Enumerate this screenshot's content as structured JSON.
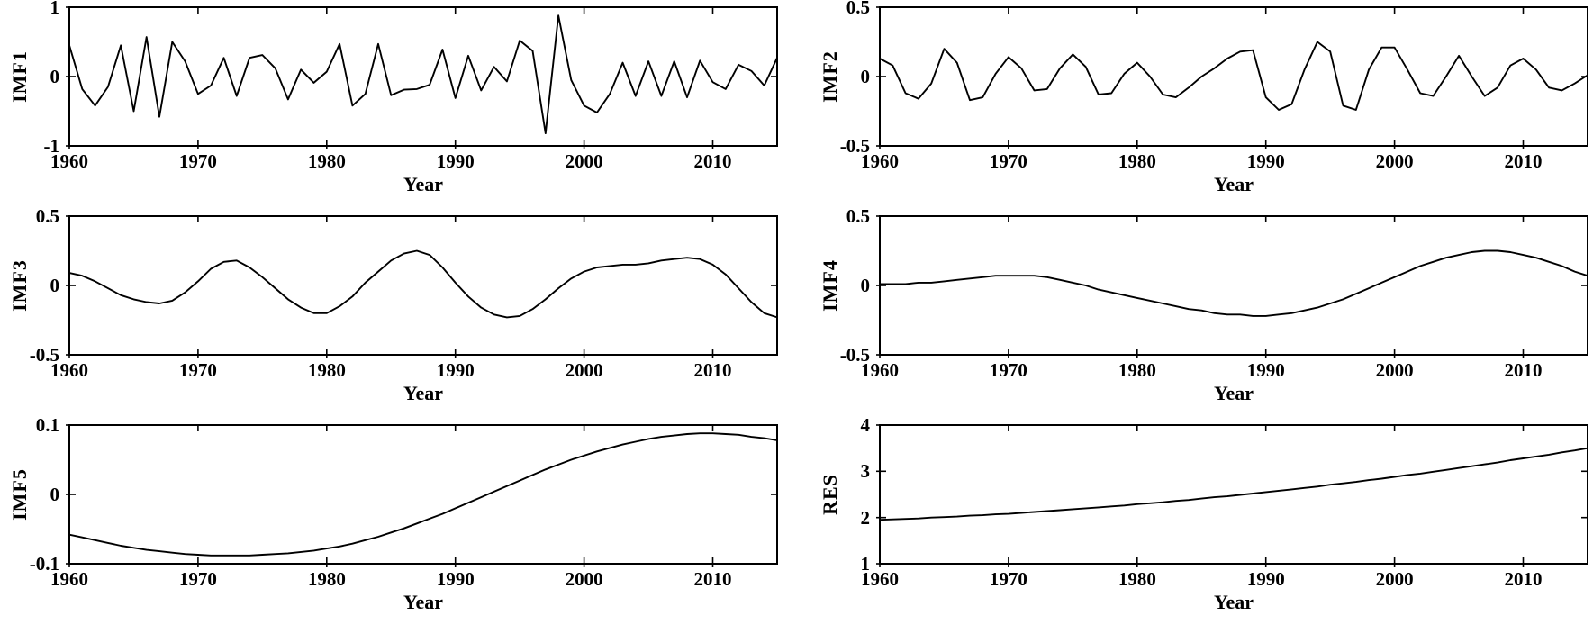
{
  "figure": {
    "background": "#ffffff",
    "line_color": "#000000",
    "columns": 2,
    "rows": 3
  },
  "chart_data": [
    {
      "type": "line",
      "ylabel": "IMF1",
      "xlabel": "Year",
      "xlim": [
        1960,
        2015
      ],
      "ylim": [
        -1,
        1
      ],
      "xticks": [
        1960,
        1970,
        1980,
        1990,
        2000,
        2010
      ],
      "xtick_labels": [
        "1960",
        "1970",
        "1980",
        "1990",
        "2000",
        "2010"
      ],
      "yticks": [
        -1,
        0,
        1
      ],
      "ytick_labels": [
        "-1",
        "0",
        "1"
      ],
      "grid": false,
      "legend": null,
      "x_start": 1960,
      "x_step": 1,
      "y": [
        0.45,
        -0.18,
        -0.42,
        -0.15,
        0.45,
        -0.5,
        0.57,
        -0.58,
        0.5,
        0.22,
        -0.25,
        -0.13,
        0.27,
        -0.28,
        0.27,
        0.31,
        0.12,
        -0.33,
        0.1,
        -0.09,
        0.07,
        0.47,
        -0.42,
        -0.25,
        0.47,
        -0.27,
        -0.19,
        -0.18,
        -0.12,
        0.39,
        -0.31,
        0.3,
        -0.2,
        0.14,
        -0.07,
        0.52,
        0.37,
        -0.82,
        0.88,
        -0.05,
        -0.42,
        -0.52,
        -0.25,
        0.2,
        -0.28,
        0.22,
        -0.28,
        0.22,
        -0.3,
        0.23,
        -0.08,
        -0.18,
        0.17,
        0.08,
        -0.13,
        0.27
      ]
    },
    {
      "type": "line",
      "ylabel": "IMF2",
      "xlabel": "Year",
      "xlim": [
        1960,
        2015
      ],
      "ylim": [
        -0.5,
        0.5
      ],
      "xticks": [
        1960,
        1970,
        1980,
        1990,
        2000,
        2010
      ],
      "xtick_labels": [
        "1960",
        "1970",
        "1980",
        "1990",
        "2000",
        "2010"
      ],
      "yticks": [
        -0.5,
        0,
        0.5
      ],
      "ytick_labels": [
        "-0.5",
        "0",
        "0.5"
      ],
      "grid": false,
      "legend": null,
      "x_start": 1960,
      "x_step": 1,
      "y": [
        0.13,
        0.08,
        -0.12,
        -0.16,
        -0.05,
        0.2,
        0.1,
        -0.17,
        -0.15,
        0.02,
        0.14,
        0.06,
        -0.1,
        -0.09,
        0.06,
        0.16,
        0.07,
        -0.13,
        -0.12,
        0.02,
        0.1,
        0.0,
        -0.13,
        -0.15,
        -0.08,
        0.0,
        0.06,
        0.13,
        0.18,
        0.19,
        -0.15,
        -0.24,
        -0.2,
        0.05,
        0.25,
        0.18,
        -0.21,
        -0.24,
        0.05,
        0.21,
        0.21,
        0.05,
        -0.12,
        -0.14,
        0.0,
        0.15,
        0.0,
        -0.14,
        -0.08,
        0.08,
        0.13,
        0.05,
        -0.08,
        -0.1,
        -0.05,
        0.01
      ]
    },
    {
      "type": "line",
      "ylabel": "IMF3",
      "xlabel": "Year",
      "xlim": [
        1960,
        2015
      ],
      "ylim": [
        -0.5,
        0.5
      ],
      "xticks": [
        1960,
        1970,
        1980,
        1990,
        2000,
        2010
      ],
      "xtick_labels": [
        "1960",
        "1970",
        "1980",
        "1990",
        "2000",
        "2010"
      ],
      "yticks": [
        -0.5,
        0,
        0.5
      ],
      "ytick_labels": [
        "-0.5",
        "0",
        "0.5"
      ],
      "grid": false,
      "legend": null,
      "x_start": 1960,
      "x_step": 1,
      "y": [
        0.09,
        0.07,
        0.03,
        -0.02,
        -0.07,
        -0.1,
        -0.12,
        -0.13,
        -0.11,
        -0.05,
        0.03,
        0.12,
        0.17,
        0.18,
        0.13,
        0.06,
        -0.02,
        -0.1,
        -0.16,
        -0.2,
        -0.2,
        -0.15,
        -0.08,
        0.02,
        0.1,
        0.18,
        0.23,
        0.25,
        0.22,
        0.13,
        0.02,
        -0.08,
        -0.16,
        -0.21,
        -0.23,
        -0.22,
        -0.17,
        -0.1,
        -0.02,
        0.05,
        0.1,
        0.13,
        0.14,
        0.15,
        0.15,
        0.16,
        0.18,
        0.19,
        0.2,
        0.19,
        0.15,
        0.08,
        -0.02,
        -0.12,
        -0.2,
        -0.23
      ]
    },
    {
      "type": "line",
      "ylabel": "IMF4",
      "xlabel": "Year",
      "xlim": [
        1960,
        2015
      ],
      "ylim": [
        -0.5,
        0.5
      ],
      "xticks": [
        1960,
        1970,
        1980,
        1990,
        2000,
        2010
      ],
      "xtick_labels": [
        "1960",
        "1970",
        "1980",
        "1990",
        "2000",
        "2010"
      ],
      "yticks": [
        -0.5,
        0,
        0.5
      ],
      "ytick_labels": [
        "-0.5",
        "0",
        "0.5"
      ],
      "grid": false,
      "legend": null,
      "x_start": 1960,
      "x_step": 1,
      "y": [
        0.01,
        0.01,
        0.01,
        0.02,
        0.02,
        0.03,
        0.04,
        0.05,
        0.06,
        0.07,
        0.07,
        0.07,
        0.07,
        0.06,
        0.04,
        0.02,
        0.0,
        -0.03,
        -0.05,
        -0.07,
        -0.09,
        -0.11,
        -0.13,
        -0.15,
        -0.17,
        -0.18,
        -0.2,
        -0.21,
        -0.21,
        -0.22,
        -0.22,
        -0.21,
        -0.2,
        -0.18,
        -0.16,
        -0.13,
        -0.1,
        -0.06,
        -0.02,
        0.02,
        0.06,
        0.1,
        0.14,
        0.17,
        0.2,
        0.22,
        0.24,
        0.25,
        0.25,
        0.24,
        0.22,
        0.2,
        0.17,
        0.14,
        0.1,
        0.07
      ]
    },
    {
      "type": "line",
      "ylabel": "IMF5",
      "xlabel": "Year",
      "xlim": [
        1960,
        2015
      ],
      "ylim": [
        -0.1,
        0.1
      ],
      "xticks": [
        1960,
        1970,
        1980,
        1990,
        2000,
        2010
      ],
      "xtick_labels": [
        "1960",
        "1970",
        "1980",
        "1990",
        "2000",
        "2010"
      ],
      "yticks": [
        -0.1,
        0,
        0.1
      ],
      "ytick_labels": [
        "-0.1",
        "0",
        "0.1"
      ],
      "grid": false,
      "legend": null,
      "x_start": 1960,
      "x_step": 1,
      "y": [
        -0.058,
        -0.062,
        -0.066,
        -0.07,
        -0.074,
        -0.077,
        -0.08,
        -0.082,
        -0.084,
        -0.086,
        -0.087,
        -0.088,
        -0.088,
        -0.088,
        -0.088,
        -0.087,
        -0.086,
        -0.085,
        -0.083,
        -0.081,
        -0.078,
        -0.075,
        -0.071,
        -0.066,
        -0.061,
        -0.055,
        -0.049,
        -0.042,
        -0.035,
        -0.028,
        -0.02,
        -0.012,
        -0.004,
        0.004,
        0.012,
        0.02,
        0.028,
        0.036,
        0.043,
        0.05,
        0.056,
        0.062,
        0.067,
        0.072,
        0.076,
        0.08,
        0.083,
        0.085,
        0.087,
        0.088,
        0.088,
        0.087,
        0.086,
        0.083,
        0.081,
        0.078
      ]
    },
    {
      "type": "line",
      "ylabel": "RES",
      "xlabel": "Year",
      "xlim": [
        1960,
        2015
      ],
      "ylim": [
        1,
        4
      ],
      "xticks": [
        1960,
        1970,
        1980,
        1990,
        2000,
        2010
      ],
      "xtick_labels": [
        "1960",
        "1970",
        "1980",
        "1990",
        "2000",
        "2010"
      ],
      "yticks": [
        1,
        2,
        3,
        4
      ],
      "ytick_labels": [
        "1",
        "2",
        "3",
        "4"
      ],
      "grid": false,
      "legend": null,
      "x_start": 1960,
      "x_step": 1,
      "y": [
        1.95,
        1.96,
        1.97,
        1.98,
        2.0,
        2.01,
        2.02,
        2.04,
        2.05,
        2.07,
        2.08,
        2.1,
        2.12,
        2.14,
        2.16,
        2.18,
        2.2,
        2.22,
        2.24,
        2.26,
        2.29,
        2.31,
        2.33,
        2.36,
        2.38,
        2.41,
        2.44,
        2.46,
        2.49,
        2.52,
        2.55,
        2.58,
        2.61,
        2.64,
        2.67,
        2.71,
        2.74,
        2.77,
        2.81,
        2.84,
        2.88,
        2.92,
        2.95,
        2.99,
        3.03,
        3.07,
        3.11,
        3.15,
        3.19,
        3.24,
        3.28,
        3.32,
        3.36,
        3.41,
        3.45,
        3.5
      ]
    }
  ]
}
